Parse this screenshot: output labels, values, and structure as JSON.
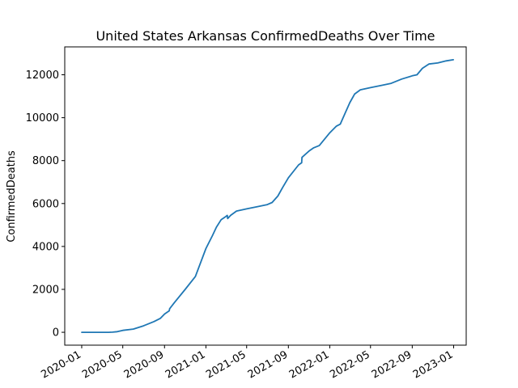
{
  "chart_data": {
    "type": "line",
    "title": "United States Arkansas ConfirmedDeaths Over Time",
    "xlabel": "",
    "ylabel": "ConfirmedDeaths",
    "x_tick_labels": [
      "2020-01",
      "2020-05",
      "2020-09",
      "2021-01",
      "2021-05",
      "2021-09",
      "2022-01",
      "2022-05",
      "2022-09",
      "2023-01"
    ],
    "y_ticks": [
      0,
      2000,
      4000,
      6000,
      8000,
      10000,
      12000
    ],
    "ylim": [
      -600,
      13300
    ],
    "xlim": [
      "2019-11-12",
      "2023-02-07"
    ],
    "grid": false,
    "series": [
      {
        "color": "#1f77b4",
        "x": [
          "2020-01-01",
          "2020-02-01",
          "2020-03-01",
          "2020-03-20",
          "2020-04-01",
          "2020-04-15",
          "2020-05-01",
          "2020-06-01",
          "2020-07-01",
          "2020-08-01",
          "2020-08-20",
          "2020-09-01",
          "2020-09-15",
          "2020-09-16",
          "2020-10-01",
          "2020-11-01",
          "2020-12-01",
          "2021-01-01",
          "2021-01-20",
          "2021-02-01",
          "2021-02-15",
          "2021-03-01",
          "2021-03-05",
          "2021-03-06",
          "2021-03-15",
          "2021-04-01",
          "2021-05-01",
          "2021-06-01",
          "2021-07-01",
          "2021-07-15",
          "2021-08-01",
          "2021-08-15",
          "2021-09-01",
          "2021-10-01",
          "2021-10-10",
          "2021-10-11",
          "2021-11-01",
          "2021-11-15",
          "2021-12-01",
          "2022-01-01",
          "2022-01-20",
          "2022-02-01",
          "2022-02-15",
          "2022-03-01",
          "2022-03-15",
          "2022-04-01",
          "2022-05-01",
          "2022-06-01",
          "2022-07-01",
          "2022-08-01",
          "2022-09-01",
          "2022-09-15",
          "2022-10-01",
          "2022-10-20",
          "2022-11-15",
          "2022-12-10",
          "2022-12-31"
        ],
        "values": [
          0,
          0,
          0,
          0,
          5,
          30,
          90,
          150,
          300,
          500,
          650,
          850,
          1000,
          1100,
          1400,
          2000,
          2600,
          3900,
          4500,
          4900,
          5250,
          5400,
          5450,
          5300,
          5450,
          5650,
          5750,
          5850,
          5950,
          6050,
          6350,
          6750,
          7200,
          7800,
          7900,
          8150,
          8450,
          8600,
          8700,
          9300,
          9600,
          9700,
          10200,
          10700,
          11100,
          11300,
          11400,
          11500,
          11600,
          11800,
          11950,
          12000,
          12300,
          12500,
          12550,
          12650,
          12700
        ]
      }
    ]
  }
}
